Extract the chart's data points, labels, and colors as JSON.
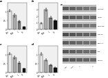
{
  "panels": {
    "A": {
      "label": "a",
      "groups": [
        "Con",
        "Mod",
        "L",
        "H"
      ],
      "bars": [
        {
          "value": 1.05,
          "color": "#e8e8e8",
          "edgecolor": "#444444"
        },
        {
          "value": 0.8,
          "color": "#aaaaaa",
          "edgecolor": "#444444"
        },
        {
          "value": 0.45,
          "color": "#777777",
          "edgecolor": "#444444"
        },
        {
          "value": 0.15,
          "color": "#111111",
          "edgecolor": "#111111"
        }
      ],
      "errors": [
        0.06,
        0.09,
        0.07,
        0.02
      ],
      "ylim": [
        0,
        1.5
      ],
      "yticks": [
        0,
        0.5,
        1.0
      ],
      "ylabel": ""
    },
    "B": {
      "label": "b",
      "groups": [
        "Con",
        "Mod",
        "L",
        "H"
      ],
      "bars": [
        {
          "value": 0.95,
          "color": "#e8e8e8",
          "edgecolor": "#444444"
        },
        {
          "value": 3.0,
          "color": "#aaaaaa",
          "edgecolor": "#444444"
        },
        {
          "value": 1.8,
          "color": "#777777",
          "edgecolor": "#444444"
        },
        {
          "value": 1.3,
          "color": "#111111",
          "edgecolor": "#111111"
        }
      ],
      "errors": [
        0.07,
        0.25,
        0.18,
        0.13
      ],
      "ylim": [
        0,
        4.0
      ],
      "yticks": [
        0,
        1,
        2,
        3
      ],
      "ylabel": ""
    },
    "C": {
      "label": "c",
      "groups": [
        "Con",
        "Mod",
        "L",
        "H"
      ],
      "bars": [
        {
          "value": 1.05,
          "color": "#e8e8e8",
          "edgecolor": "#444444"
        },
        {
          "value": 0.85,
          "color": "#aaaaaa",
          "edgecolor": "#444444"
        },
        {
          "value": 0.55,
          "color": "#777777",
          "edgecolor": "#444444"
        },
        {
          "value": 0.22,
          "color": "#111111",
          "edgecolor": "#111111"
        }
      ],
      "errors": [
        0.06,
        0.07,
        0.06,
        0.03
      ],
      "ylim": [
        0,
        1.5
      ],
      "yticks": [
        0,
        0.5,
        1.0
      ],
      "ylabel": ""
    },
    "D": {
      "label": "d",
      "groups": [
        "Con",
        "Mod",
        "L",
        "H"
      ],
      "bars": [
        {
          "value": 1.05,
          "color": "#e8e8e8",
          "edgecolor": "#444444"
        },
        {
          "value": 0.7,
          "color": "#aaaaaa",
          "edgecolor": "#444444"
        },
        {
          "value": 0.42,
          "color": "#777777",
          "edgecolor": "#444444"
        },
        {
          "value": 0.28,
          "color": "#111111",
          "edgecolor": "#111111"
        }
      ],
      "errors": [
        0.07,
        0.06,
        0.05,
        0.03
      ],
      "ylim": [
        0,
        1.5
      ],
      "yticks": [
        0,
        0.5,
        1.0
      ],
      "ylabel": ""
    }
  },
  "wb": {
    "label": "e",
    "n_rows": 7,
    "n_cols": 5,
    "row_labels": [
      "p-mTOR",
      "mTOR",
      "p-p70S6K",
      "p70S6K",
      "Beclin-1",
      "LC3",
      "GAPDH"
    ],
    "col_labels": [
      "Con",
      "Mod",
      "L",
      "  ",
      "H"
    ],
    "bg_color": "#cccccc",
    "band_rows": [
      [
        0.35,
        0.38,
        0.42,
        0.45,
        0.48
      ],
      [
        0.32,
        0.35,
        0.38,
        0.4,
        0.42
      ],
      [
        0.38,
        0.4,
        0.43,
        0.45,
        0.47
      ],
      [
        0.3,
        0.33,
        0.36,
        0.38,
        0.4
      ],
      [
        0.36,
        0.38,
        0.41,
        0.43,
        0.46
      ],
      [
        0.34,
        0.37,
        0.4,
        0.42,
        0.44
      ],
      [
        0.32,
        0.34,
        0.37,
        0.39,
        0.41
      ]
    ]
  },
  "bg_color": "#f0f0f0",
  "figure_bg": "#ffffff"
}
